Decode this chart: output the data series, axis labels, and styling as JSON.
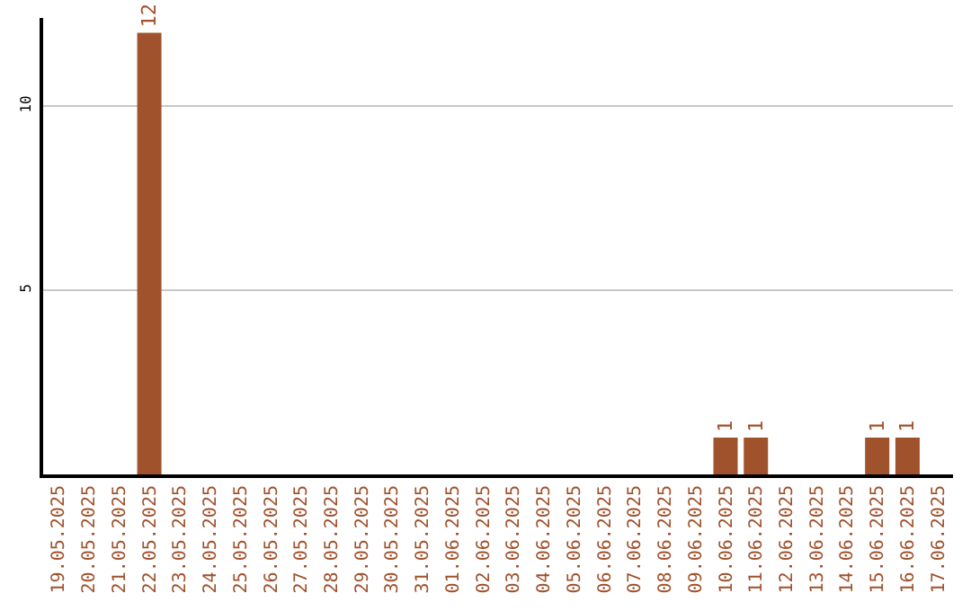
{
  "chart_data": {
    "type": "bar",
    "categories": [
      "19.05.2025",
      "20.05.2025",
      "21.05.2025",
      "22.05.2025",
      "23.05.2025",
      "24.05.2025",
      "25.05.2025",
      "26.05.2025",
      "27.05.2025",
      "28.05.2025",
      "29.05.2025",
      "30.05.2025",
      "31.05.2025",
      "01.06.2025",
      "02.06.2025",
      "03.06.2025",
      "04.06.2025",
      "05.06.2025",
      "06.06.2025",
      "07.06.2025",
      "08.06.2025",
      "09.06.2025",
      "10.06.2025",
      "11.06.2025",
      "12.06.2025",
      "13.06.2025",
      "14.06.2025",
      "15.06.2025",
      "16.06.2025",
      "17.06.2025"
    ],
    "values": [
      null,
      null,
      null,
      12,
      null,
      null,
      null,
      null,
      null,
      null,
      null,
      null,
      null,
      null,
      null,
      null,
      null,
      null,
      null,
      null,
      null,
      null,
      1,
      1,
      null,
      null,
      null,
      1,
      1,
      null
    ],
    "value_labels": [
      null,
      null,
      null,
      "12",
      null,
      null,
      null,
      null,
      null,
      null,
      null,
      null,
      null,
      null,
      null,
      null,
      null,
      null,
      null,
      null,
      null,
      null,
      "1",
      "1",
      null,
      null,
      null,
      "1",
      "1",
      null
    ],
    "color": "#a0522d",
    "ylim": [
      0,
      12.4
    ],
    "yticks": [
      5,
      10
    ],
    "grid": "y"
  }
}
